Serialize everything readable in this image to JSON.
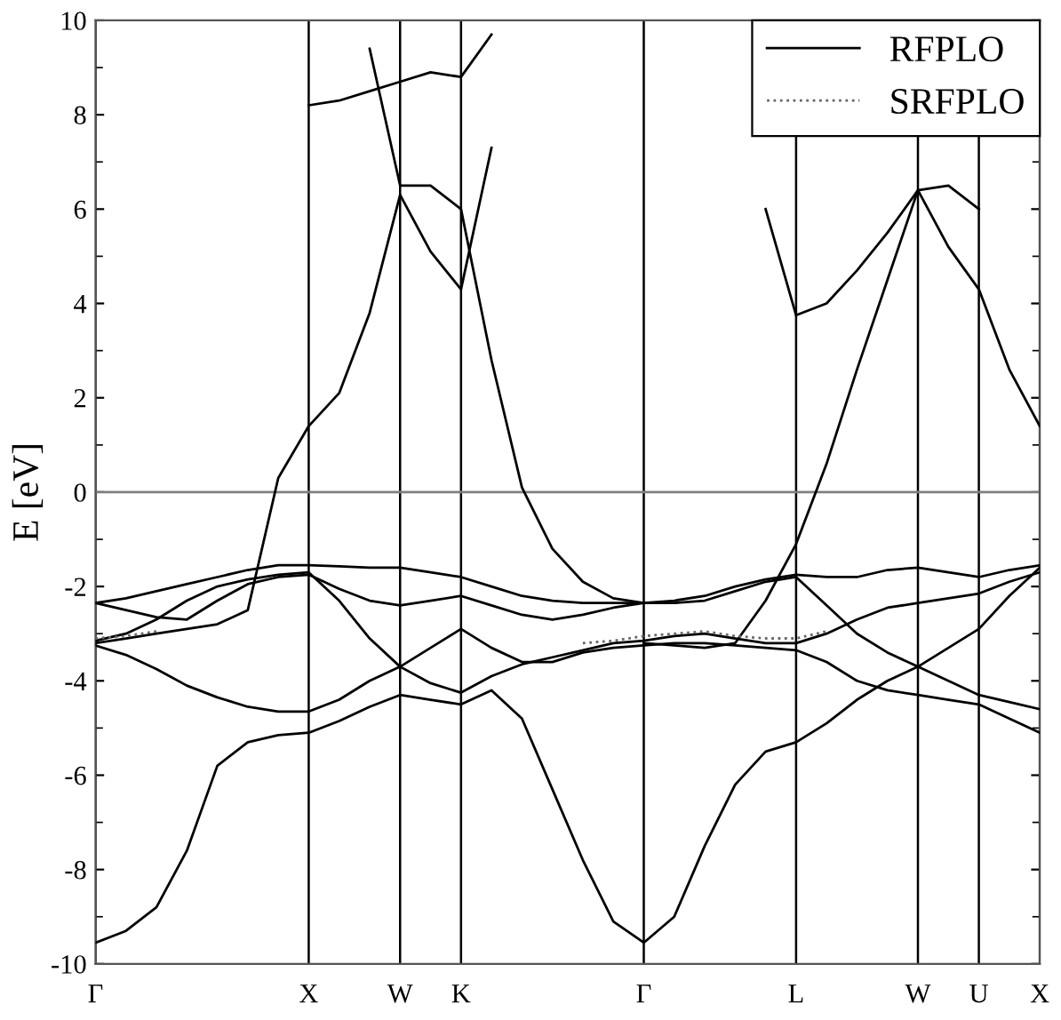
{
  "chart_data": {
    "type": "line",
    "ylabel": "E [eV]",
    "categories": [
      "Γ",
      null,
      null,
      null,
      null,
      null,
      null,
      "X",
      null,
      null,
      "W",
      null,
      "K",
      null,
      null,
      null,
      null,
      null,
      "Γ",
      null,
      null,
      null,
      null,
      "L",
      null,
      null,
      null,
      "W",
      null,
      "U",
      null,
      "X"
    ],
    "ylim": [
      -10,
      10
    ],
    "yticks": [
      -10,
      -8,
      -6,
      -4,
      -2,
      0,
      2,
      4,
      6,
      8,
      10
    ],
    "grid": "x",
    "legend": "top right",
    "ref_lines": [
      {
        "axis": "y",
        "value": 0,
        "color": "#808080"
      }
    ],
    "series": [
      {
        "name": "RFPLO",
        "color": "#000000",
        "line_style": "solid",
        "values": [
          -9.55,
          -9.3,
          -8.8,
          -7.6,
          -5.8,
          -5.3,
          -5.15,
          -5.1,
          -4.85,
          -4.55,
          -4.3,
          -4.4,
          -4.5,
          -4.2,
          -4.8,
          -6.3,
          -7.8,
          -9.1,
          -9.55,
          -9.0,
          -7.5,
          -6.2,
          -5.5,
          -5.3,
          -4.9,
          -4.4,
          -4.0,
          -3.7,
          -3.3,
          -2.9,
          -2.2,
          -1.6
        ]
      },
      {
        "color": "#000000",
        "line_style": "solid",
        "values": [
          -3.25,
          -3.45,
          -3.75,
          -4.1,
          -4.35,
          -4.55,
          -4.65,
          -4.65,
          -4.4,
          -4.0,
          -3.7,
          -3.3,
          -2.9,
          -3.3,
          -3.6,
          -3.6,
          -3.4,
          -3.3,
          -3.25,
          -3.2,
          -3.2,
          -3.25,
          -3.3,
          -3.35,
          -3.6,
          -4.0,
          -4.2,
          -4.3,
          -4.4,
          -4.5,
          -4.8,
          -5.1
        ]
      },
      {
        "color": "#000000",
        "line_style": "solid",
        "values": [
          -3.15,
          -3.0,
          -2.7,
          -2.3,
          -2.0,
          -1.85,
          -1.75,
          -1.7,
          -2.3,
          -3.1,
          -3.7,
          -4.05,
          -4.25,
          -3.9,
          -3.65,
          -3.5,
          -3.35,
          -3.2,
          -3.15,
          -3.05,
          -3.0,
          -3.1,
          -3.2,
          -3.2,
          -3.0,
          -2.7,
          -2.45,
          -2.35,
          -2.25,
          -2.15,
          -1.9,
          -1.7
        ]
      },
      {
        "color": "#000000",
        "line_style": "solid",
        "values": [
          -2.35,
          -2.5,
          -2.65,
          -2.7,
          -2.3,
          -1.95,
          -1.8,
          -1.75,
          -2.05,
          -2.3,
          -2.4,
          -2.3,
          -2.2,
          -2.4,
          -2.6,
          -2.7,
          -2.6,
          -2.45,
          -2.35,
          -2.35,
          -2.3,
          -2.1,
          -1.9,
          -1.8,
          -2.4,
          -3.0,
          -3.4,
          -3.7,
          -4.0,
          -4.3,
          -4.45,
          -4.6
        ]
      },
      {
        "color": "#000000",
        "line_style": "solid",
        "values": [
          -2.35,
          -2.25,
          -2.1,
          -1.95,
          -1.8,
          -1.65,
          -1.55,
          -1.55,
          -1.57,
          -1.6,
          -1.6,
          -1.7,
          -1.8,
          -2.0,
          -2.2,
          -2.3,
          -2.35,
          -2.35,
          -2.35,
          -2.3,
          -2.2,
          -2.0,
          -1.85,
          -1.75,
          -1.8,
          -1.8,
          -1.65,
          -1.6,
          -1.7,
          -1.8,
          -1.65,
          -1.55
        ]
      },
      {
        "color": "#000000",
        "line_style": "solid",
        "values": [
          -3.2,
          -3.1,
          -3.0,
          -2.9,
          -2.8,
          -2.5,
          0.3,
          1.4,
          2.1,
          3.8,
          6.3,
          5.1,
          4.3,
          7.3,
          null,
          null,
          null,
          null,
          null,
          null,
          null,
          null,
          null,
          null,
          null,
          null,
          null,
          null,
          null,
          null,
          null,
          null
        ]
      },
      {
        "color": "#000000",
        "line_style": "solid",
        "values": [
          null,
          null,
          null,
          null,
          null,
          null,
          null,
          null,
          null,
          9.4,
          6.5,
          6.5,
          6.0,
          2.8,
          0.1,
          -1.2,
          -1.9,
          -2.25,
          -2.35,
          null,
          null,
          null,
          null,
          null,
          null,
          null,
          null,
          null,
          null,
          null,
          null,
          null
        ]
      },
      {
        "color": "#000000",
        "line_style": "solid",
        "values": [
          null,
          null,
          null,
          null,
          null,
          null,
          null,
          8.2,
          8.3,
          8.5,
          8.7,
          8.9,
          8.8,
          9.7,
          null,
          null,
          null,
          null,
          null,
          null,
          null,
          null,
          null,
          null,
          null,
          null,
          null,
          null,
          null,
          null,
          null,
          null
        ]
      },
      {
        "color": "#000000",
        "line_style": "solid",
        "values": [
          null,
          null,
          null,
          null,
          null,
          null,
          null,
          null,
          null,
          null,
          null,
          null,
          null,
          null,
          null,
          null,
          null,
          null,
          -3.2,
          -3.25,
          -3.3,
          -3.2,
          -2.3,
          -1.1,
          0.6,
          2.6,
          4.5,
          6.4,
          5.2,
          4.3,
          2.6,
          1.4
        ]
      },
      {
        "color": "#000000",
        "line_style": "solid",
        "values": [
          null,
          null,
          null,
          null,
          null,
          null,
          null,
          null,
          null,
          null,
          null,
          null,
          null,
          null,
          null,
          null,
          null,
          null,
          null,
          null,
          null,
          null,
          6.0,
          3.75,
          4.0,
          4.7,
          5.5,
          6.4,
          6.5,
          6.0,
          null,
          null
        ]
      },
      {
        "name": "SRFPLO",
        "color": "#666666",
        "line_style": "dotted",
        "values": [
          -3.1,
          -3.05,
          -2.95,
          null,
          null,
          null,
          null,
          null,
          null,
          null,
          null,
          null,
          null,
          null,
          null,
          null,
          -3.2,
          -3.15,
          -3.05,
          -3.0,
          -2.95,
          -3.05,
          -3.1,
          -3.1,
          -2.95,
          null,
          null,
          null,
          null,
          null,
          null,
          null
        ]
      }
    ]
  }
}
